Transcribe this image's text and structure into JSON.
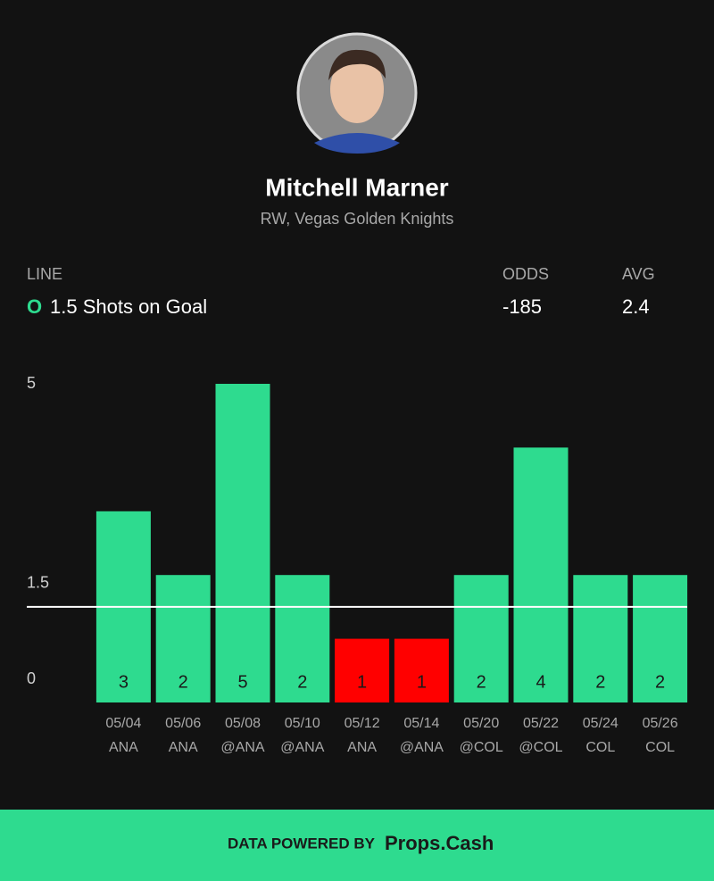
{
  "header": {
    "name": "Mitchell Marner",
    "subtitle": "RW, Vegas Golden Knights"
  },
  "prop": {
    "line_label": "LINE",
    "side": "O",
    "line_text": "1.5 Shots on Goal",
    "odds_label": "ODDS",
    "odds": "-185",
    "avg_label": "AVG",
    "avg": "2.4"
  },
  "chart_data": {
    "type": "bar",
    "categories": [
      "05/04",
      "05/06",
      "05/08",
      "05/10",
      "05/12",
      "05/14",
      "05/20",
      "05/22",
      "05/24",
      "05/26"
    ],
    "opponents": [
      "ANA",
      "ANA",
      "@ANA",
      "@ANA",
      "ANA",
      "@ANA",
      "@COL",
      "@COL",
      "COL",
      "COL"
    ],
    "values": [
      3,
      2,
      5,
      2,
      1,
      1,
      2,
      4,
      2,
      2
    ],
    "threshold": 1.5,
    "over_color": "#2edb8f",
    "under_color": "#ff0000",
    "ylim": [
      0,
      5
    ],
    "yticks": [
      0,
      1.5,
      5
    ]
  },
  "footer": {
    "prefix": "DATA POWERED BY",
    "brand": "Props.Cash"
  }
}
